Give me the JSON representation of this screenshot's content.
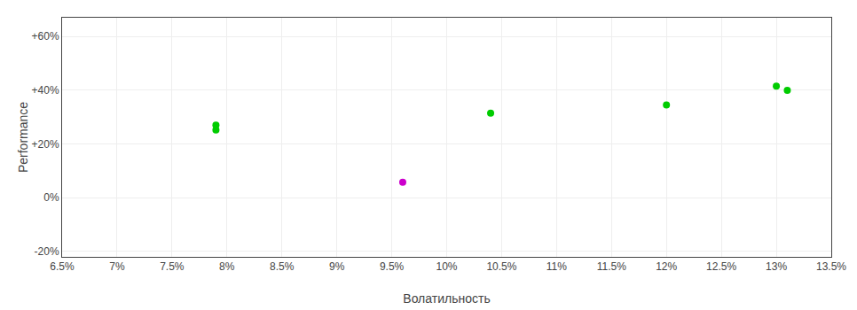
{
  "chart_data": {
    "type": "scatter",
    "xlabel": "Волатильность",
    "ylabel": "Performance",
    "xlim": [
      0.065,
      0.135
    ],
    "ylim": [
      -0.22,
      0.67
    ],
    "xticks": [
      {
        "value": 0.065,
        "label": "6.5%"
      },
      {
        "value": 0.07,
        "label": "7%"
      },
      {
        "value": 0.075,
        "label": "7.5%"
      },
      {
        "value": 0.08,
        "label": "8%"
      },
      {
        "value": 0.085,
        "label": "8.5%"
      },
      {
        "value": 0.09,
        "label": "9%"
      },
      {
        "value": 0.095,
        "label": "9.5%"
      },
      {
        "value": 0.1,
        "label": "10%"
      },
      {
        "value": 0.105,
        "label": "10.5%"
      },
      {
        "value": 0.11,
        "label": "11%"
      },
      {
        "value": 0.115,
        "label": "11.5%"
      },
      {
        "value": 0.12,
        "label": "12%"
      },
      {
        "value": 0.125,
        "label": "12.5%"
      },
      {
        "value": 0.13,
        "label": "13%"
      },
      {
        "value": 0.135,
        "label": "13.5%"
      }
    ],
    "yticks": [
      {
        "value": -0.2,
        "label": "-20%"
      },
      {
        "value": 0.0,
        "label": "0%"
      },
      {
        "value": 0.2,
        "label": "+20%"
      },
      {
        "value": 0.4,
        "label": "+40%"
      },
      {
        "value": 0.6,
        "label": "+60%"
      }
    ],
    "grid": true,
    "series": [
      {
        "color": "#00cc00",
        "x": [
          0.079,
          0.079,
          0.104,
          0.12,
          0.13,
          0.131
        ],
        "values": [
          0.27,
          0.252,
          0.315,
          0.345,
          0.415,
          0.4
        ]
      },
      {
        "color": "#cc00cc",
        "x": [
          0.096
        ],
        "values": [
          0.058
        ]
      }
    ]
  }
}
